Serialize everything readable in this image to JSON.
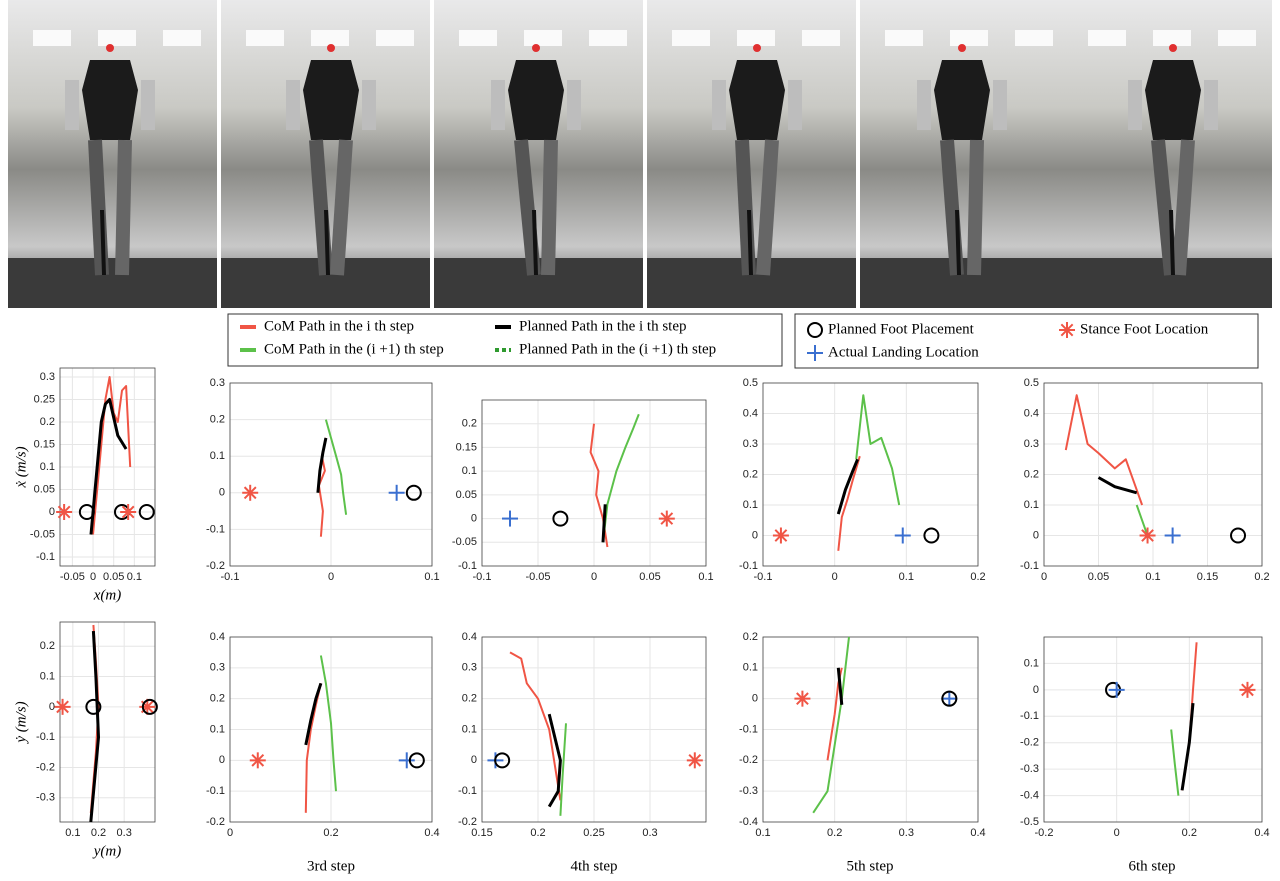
{
  "legend": [
    {
      "name": "CoM Path in the i th step",
      "color": "#f05545",
      "style": "solid"
    },
    {
      "name": "CoM Path in the (i +1) th step",
      "color": "#5cc14a",
      "style": "solid"
    },
    {
      "name": "Planned Path in the i th step",
      "color": "#000000",
      "style": "solid"
    },
    {
      "name": "Planned Path in the (i +1) th step",
      "color": "#2f9a2f",
      "style": "dashed"
    },
    {
      "name": "Planned Foot Placement",
      "color": "#000000",
      "marker": "circle"
    },
    {
      "name": "Stance Foot Location",
      "color": "#f05545",
      "marker": "star"
    },
    {
      "name": "Actual Landing Location",
      "color": "#3a6fd0",
      "marker": "plus"
    }
  ],
  "step_labels": [
    "3rd step",
    "4th step",
    "5th step",
    "6th step"
  ],
  "chart_data": [
    {
      "type": "line",
      "ylabel": "ẋ (m/s)",
      "xlabel": "x(m)",
      "xlim": [
        -0.08,
        0.15
      ],
      "xticks": [
        -0.05,
        0,
        0.05,
        0.1
      ],
      "ylim": [
        -0.12,
        0.32
      ],
      "yticks": [
        -0.1,
        -0.05,
        0,
        0.05,
        0.1,
        0.15,
        0.2,
        0.25,
        0.3
      ],
      "grid": true,
      "series": [
        {
          "color": "#f05545",
          "x": [
            0.0,
            0.01,
            0.02,
            0.03,
            0.04,
            0.05,
            0.06,
            0.07,
            0.08,
            0.09
          ],
          "values": [
            -0.05,
            0.05,
            0.15,
            0.25,
            0.3,
            0.22,
            0.2,
            0.27,
            0.28,
            0.1
          ]
        },
        {
          "color": "#000000",
          "x": [
            -0.005,
            0.005,
            0.02,
            0.03,
            0.04,
            0.06,
            0.08
          ],
          "values": [
            -0.05,
            0.05,
            0.2,
            0.24,
            0.25,
            0.17,
            0.14
          ]
        },
        {
          "color": "#000000",
          "marker": "circle",
          "x": [
            -0.015,
            0.07,
            0.13
          ],
          "values": [
            0,
            0,
            0
          ]
        },
        {
          "color": "#f05545",
          "marker": "star",
          "x": [
            -0.07,
            0.085
          ],
          "values": [
            0,
            0
          ]
        }
      ]
    },
    {
      "type": "line",
      "xlim": [
        -0.1,
        0.1
      ],
      "xticks": [
        -0.1,
        0,
        0.1
      ],
      "ylim": [
        -0.2,
        0.3
      ],
      "yticks": [
        -0.2,
        -0.1,
        0,
        0.1,
        0.2,
        0.3
      ],
      "grid": true,
      "series": [
        {
          "color": "#f05545",
          "x": [
            -0.01,
            -0.008,
            -0.012,
            -0.006,
            -0.009,
            -0.005
          ],
          "values": [
            -0.12,
            -0.05,
            0.02,
            0.06,
            0.1,
            0.15
          ]
        },
        {
          "color": "#5cc14a",
          "x": [
            -0.005,
            0.0,
            0.005,
            0.01,
            0.012,
            0.015
          ],
          "values": [
            0.2,
            0.15,
            0.1,
            0.05,
            0.0,
            -0.06
          ]
        },
        {
          "color": "#000000",
          "x": [
            -0.013,
            -0.011,
            -0.008,
            -0.005
          ],
          "values": [
            0.0,
            0.06,
            0.11,
            0.15
          ]
        },
        {
          "color": "#f05545",
          "marker": "star",
          "x": [
            -0.08
          ],
          "values": [
            0
          ]
        },
        {
          "color": "#3a6fd0",
          "marker": "plus",
          "x": [
            0.065
          ],
          "values": [
            0
          ]
        },
        {
          "color": "#000000",
          "marker": "circle",
          "x": [
            0.082
          ],
          "values": [
            0
          ]
        }
      ]
    },
    {
      "type": "line",
      "xlim": [
        -0.1,
        0.1
      ],
      "xticks": [
        -0.1,
        -0.05,
        0,
        0.05,
        0.1
      ],
      "ylim": [
        -0.1,
        0.25
      ],
      "yticks": [
        -0.1,
        -0.05,
        0,
        0.05,
        0.1,
        0.15,
        0.2
      ],
      "grid": true,
      "series": [
        {
          "color": "#f05545",
          "x": [
            0.0,
            -0.003,
            0.004,
            0.002,
            0.008,
            0.012
          ],
          "values": [
            0.2,
            0.14,
            0.1,
            0.05,
            0.0,
            -0.06
          ]
        },
        {
          "color": "#5cc14a",
          "x": [
            0.008,
            0.012,
            0.02,
            0.028,
            0.035,
            0.04
          ],
          "values": [
            -0.05,
            0.03,
            0.1,
            0.15,
            0.19,
            0.22
          ]
        },
        {
          "color": "#000000",
          "x": [
            0.008,
            0.009,
            0.01
          ],
          "values": [
            -0.05,
            -0.01,
            0.03
          ]
        },
        {
          "color": "#3a6fd0",
          "marker": "plus",
          "x": [
            -0.075
          ],
          "values": [
            0
          ]
        },
        {
          "color": "#000000",
          "marker": "circle",
          "x": [
            -0.03
          ],
          "values": [
            0
          ]
        },
        {
          "color": "#f05545",
          "marker": "star",
          "x": [
            0.065
          ],
          "values": [
            0
          ]
        }
      ]
    },
    {
      "type": "line",
      "xlim": [
        -0.1,
        0.2
      ],
      "xticks": [
        -0.1,
        0,
        0.1,
        0.2
      ],
      "ylim": [
        -0.1,
        0.5
      ],
      "yticks": [
        -0.1,
        0,
        0.1,
        0.2,
        0.3,
        0.4,
        0.5
      ],
      "grid": true,
      "series": [
        {
          "color": "#f05545",
          "x": [
            0.005,
            0.01,
            0.018,
            0.025,
            0.035
          ],
          "values": [
            -0.05,
            0.06,
            0.12,
            0.18,
            0.26
          ]
        },
        {
          "color": "#5cc14a",
          "x": [
            0.03,
            0.04,
            0.05,
            0.065,
            0.08,
            0.09
          ],
          "values": [
            0.25,
            0.46,
            0.3,
            0.32,
            0.22,
            0.1
          ]
        },
        {
          "color": "#000000",
          "x": [
            0.005,
            0.015,
            0.025,
            0.032
          ],
          "values": [
            0.07,
            0.15,
            0.21,
            0.25
          ]
        },
        {
          "color": "#f05545",
          "marker": "star",
          "x": [
            -0.075
          ],
          "values": [
            0
          ]
        },
        {
          "color": "#3a6fd0",
          "marker": "plus",
          "x": [
            0.095
          ],
          "values": [
            0
          ]
        },
        {
          "color": "#000000",
          "marker": "circle",
          "x": [
            0.135
          ],
          "values": [
            0
          ]
        }
      ]
    },
    {
      "type": "line",
      "xlim": [
        0,
        0.2
      ],
      "xticks": [
        0,
        0.05,
        0.1,
        0.15,
        0.2
      ],
      "ylim": [
        -0.1,
        0.5
      ],
      "yticks": [
        -0.1,
        0,
        0.1,
        0.2,
        0.3,
        0.4,
        0.5
      ],
      "grid": true,
      "series": [
        {
          "color": "#f05545",
          "x": [
            0.02,
            0.03,
            0.04,
            0.05,
            0.065,
            0.075,
            0.085,
            0.09
          ],
          "values": [
            0.28,
            0.46,
            0.3,
            0.27,
            0.22,
            0.25,
            0.15,
            0.1
          ]
        },
        {
          "color": "#5cc14a",
          "x": [
            0.085,
            0.09,
            0.095
          ],
          "values": [
            0.1,
            0.05,
            0.0
          ]
        },
        {
          "color": "#000000",
          "x": [
            0.05,
            0.065,
            0.085
          ],
          "values": [
            0.19,
            0.16,
            0.14
          ]
        },
        {
          "color": "#f05545",
          "marker": "star",
          "x": [
            0.095
          ],
          "values": [
            0
          ]
        },
        {
          "color": "#3a6fd0",
          "marker": "plus",
          "x": [
            0.118
          ],
          "values": [
            0
          ]
        },
        {
          "color": "#000000",
          "marker": "circle",
          "x": [
            0.178
          ],
          "values": [
            0
          ]
        }
      ]
    },
    {
      "type": "line",
      "ylabel": "ẏ (m/s)",
      "xlabel": "y(m)",
      "xlim": [
        0.05,
        0.42
      ],
      "xticks": [
        0.1,
        0.2,
        0.3
      ],
      "ylim": [
        -0.38,
        0.28
      ],
      "yticks": [
        -0.3,
        -0.2,
        -0.1,
        0,
        0.1,
        0.2
      ],
      "grid": true,
      "series": [
        {
          "color": "#f05545",
          "x": [
            0.17,
            0.19,
            0.2,
            0.19,
            0.18
          ],
          "values": [
            -0.35,
            -0.15,
            0.0,
            0.15,
            0.27
          ]
        },
        {
          "color": "#000000",
          "x": [
            0.17,
            0.2,
            0.19,
            0.18
          ],
          "values": [
            -0.38,
            -0.1,
            0.1,
            0.25
          ]
        },
        {
          "color": "#f05545",
          "marker": "star",
          "x": [
            0.06,
            0.39
          ],
          "values": [
            0,
            0
          ]
        },
        {
          "color": "#000000",
          "marker": "circle",
          "x": [
            0.18,
            0.4
          ],
          "values": [
            0,
            0
          ]
        }
      ]
    },
    {
      "type": "line",
      "xlim": [
        0,
        0.4
      ],
      "xticks": [
        0,
        0.2,
        0.4
      ],
      "ylim": [
        -0.2,
        0.4
      ],
      "yticks": [
        -0.2,
        -0.1,
        0,
        0.1,
        0.2,
        0.3,
        0.4
      ],
      "grid": true,
      "series": [
        {
          "color": "#f05545",
          "x": [
            0.15,
            0.152,
            0.16,
            0.17,
            0.18
          ],
          "values": [
            -0.17,
            0.0,
            0.1,
            0.18,
            0.25
          ]
        },
        {
          "color": "#5cc14a",
          "x": [
            0.18,
            0.19,
            0.2,
            0.205,
            0.21
          ],
          "values": [
            0.34,
            0.25,
            0.12,
            0.0,
            -0.1
          ]
        },
        {
          "color": "#000000",
          "x": [
            0.15,
            0.16,
            0.17,
            0.18
          ],
          "values": [
            0.05,
            0.13,
            0.2,
            0.25
          ]
        },
        {
          "color": "#f05545",
          "marker": "star",
          "x": [
            0.055
          ],
          "values": [
            0
          ]
        },
        {
          "color": "#3a6fd0",
          "marker": "plus",
          "x": [
            0.35
          ],
          "values": [
            0
          ]
        },
        {
          "color": "#000000",
          "marker": "circle",
          "x": [
            0.37
          ],
          "values": [
            0
          ]
        }
      ]
    },
    {
      "type": "line",
      "xlim": [
        0.15,
        0.35
      ],
      "xticks": [
        0.15,
        0.2,
        0.25,
        0.3
      ],
      "ylim": [
        -0.2,
        0.4
      ],
      "yticks": [
        -0.2,
        -0.1,
        0,
        0.1,
        0.2,
        0.3,
        0.4
      ],
      "grid": true,
      "series": [
        {
          "color": "#f05545",
          "x": [
            0.175,
            0.185,
            0.19,
            0.2,
            0.21,
            0.22
          ],
          "values": [
            0.35,
            0.33,
            0.25,
            0.2,
            0.1,
            -0.13
          ]
        },
        {
          "color": "#5cc14a",
          "x": [
            0.225,
            0.222,
            0.22
          ],
          "values": [
            0.12,
            -0.05,
            -0.18
          ]
        },
        {
          "color": "#000000",
          "x": [
            0.21,
            0.22,
            0.218,
            0.21
          ],
          "values": [
            0.15,
            0.0,
            -0.1,
            -0.15
          ]
        },
        {
          "color": "#3a6fd0",
          "marker": "plus",
          "x": [
            0.162
          ],
          "values": [
            0
          ]
        },
        {
          "color": "#000000",
          "marker": "circle",
          "x": [
            0.168
          ],
          "values": [
            0
          ]
        },
        {
          "color": "#f05545",
          "marker": "star",
          "x": [
            0.34
          ],
          "values": [
            0
          ]
        }
      ]
    },
    {
      "type": "line",
      "xlim": [
        0.1,
        0.4
      ],
      "xticks": [
        0.1,
        0.2,
        0.3,
        0.4
      ],
      "ylim": [
        -0.4,
        0.2
      ],
      "yticks": [
        -0.4,
        -0.3,
        -0.2,
        -0.1,
        0,
        0.1,
        0.2
      ],
      "grid": true,
      "series": [
        {
          "color": "#f05545",
          "x": [
            0.19,
            0.2,
            0.205,
            0.21
          ],
          "values": [
            -0.2,
            -0.05,
            0.05,
            0.1
          ]
        },
        {
          "color": "#5cc14a",
          "x": [
            0.17,
            0.19,
            0.2,
            0.21,
            0.22
          ],
          "values": [
            -0.37,
            -0.3,
            -0.15,
            0.0,
            0.2
          ]
        },
        {
          "color": "#000000",
          "x": [
            0.205,
            0.21
          ],
          "values": [
            0.1,
            -0.02
          ]
        },
        {
          "color": "#f05545",
          "marker": "star",
          "x": [
            0.155
          ],
          "values": [
            0
          ]
        },
        {
          "color": "#3a6fd0",
          "marker": "plus",
          "x": [
            0.36
          ],
          "values": [
            0
          ]
        },
        {
          "color": "#000000",
          "marker": "circle",
          "x": [
            0.36
          ],
          "values": [
            0
          ]
        }
      ]
    },
    {
      "type": "line",
      "xlim": [
        -0.2,
        0.4
      ],
      "xticks": [
        -0.2,
        0,
        0.2,
        0.4
      ],
      "ylim": [
        -0.5,
        0.2
      ],
      "yticks": [
        -0.5,
        -0.4,
        -0.3,
        -0.2,
        -0.1,
        0,
        0.1
      ],
      "grid": true,
      "series": [
        {
          "color": "#f05545",
          "x": [
            0.18,
            0.19,
            0.2,
            0.21,
            0.22
          ],
          "values": [
            -0.38,
            -0.3,
            -0.2,
            0.0,
            0.18
          ]
        },
        {
          "color": "#5cc14a",
          "x": [
            0.15,
            0.16,
            0.17
          ],
          "values": [
            -0.15,
            -0.28,
            -0.4
          ]
        },
        {
          "color": "#000000",
          "x": [
            0.18,
            0.2,
            0.21
          ],
          "values": [
            -0.38,
            -0.2,
            -0.05
          ]
        },
        {
          "color": "#000000",
          "marker": "circle",
          "x": [
            -0.01
          ],
          "values": [
            0
          ]
        },
        {
          "color": "#3a6fd0",
          "marker": "plus",
          "x": [
            0.0
          ],
          "values": [
            0
          ]
        },
        {
          "color": "#f05545",
          "marker": "star",
          "x": [
            0.36
          ],
          "values": [
            0
          ]
        }
      ]
    }
  ]
}
